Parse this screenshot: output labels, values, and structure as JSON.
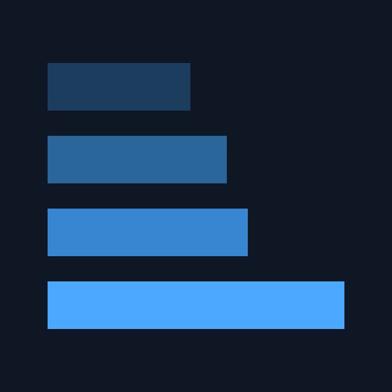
{
  "colors": {
    "background": "#0f1724"
  },
  "chart_data": {
    "type": "bar",
    "orientation": "horizontal",
    "title": "",
    "xlabel": "",
    "ylabel": "",
    "grid": false,
    "legend": "none",
    "axes_visible": false,
    "xlim": [
      0,
      424
    ],
    "categories": [
      "",
      "",
      "",
      ""
    ],
    "series": [
      {
        "values": [
          204,
          256,
          286,
          424
        ],
        "colors": [
          "#1c3d5e",
          "#2a659c",
          "#3885d1",
          "#4ca8ff"
        ]
      }
    ]
  }
}
